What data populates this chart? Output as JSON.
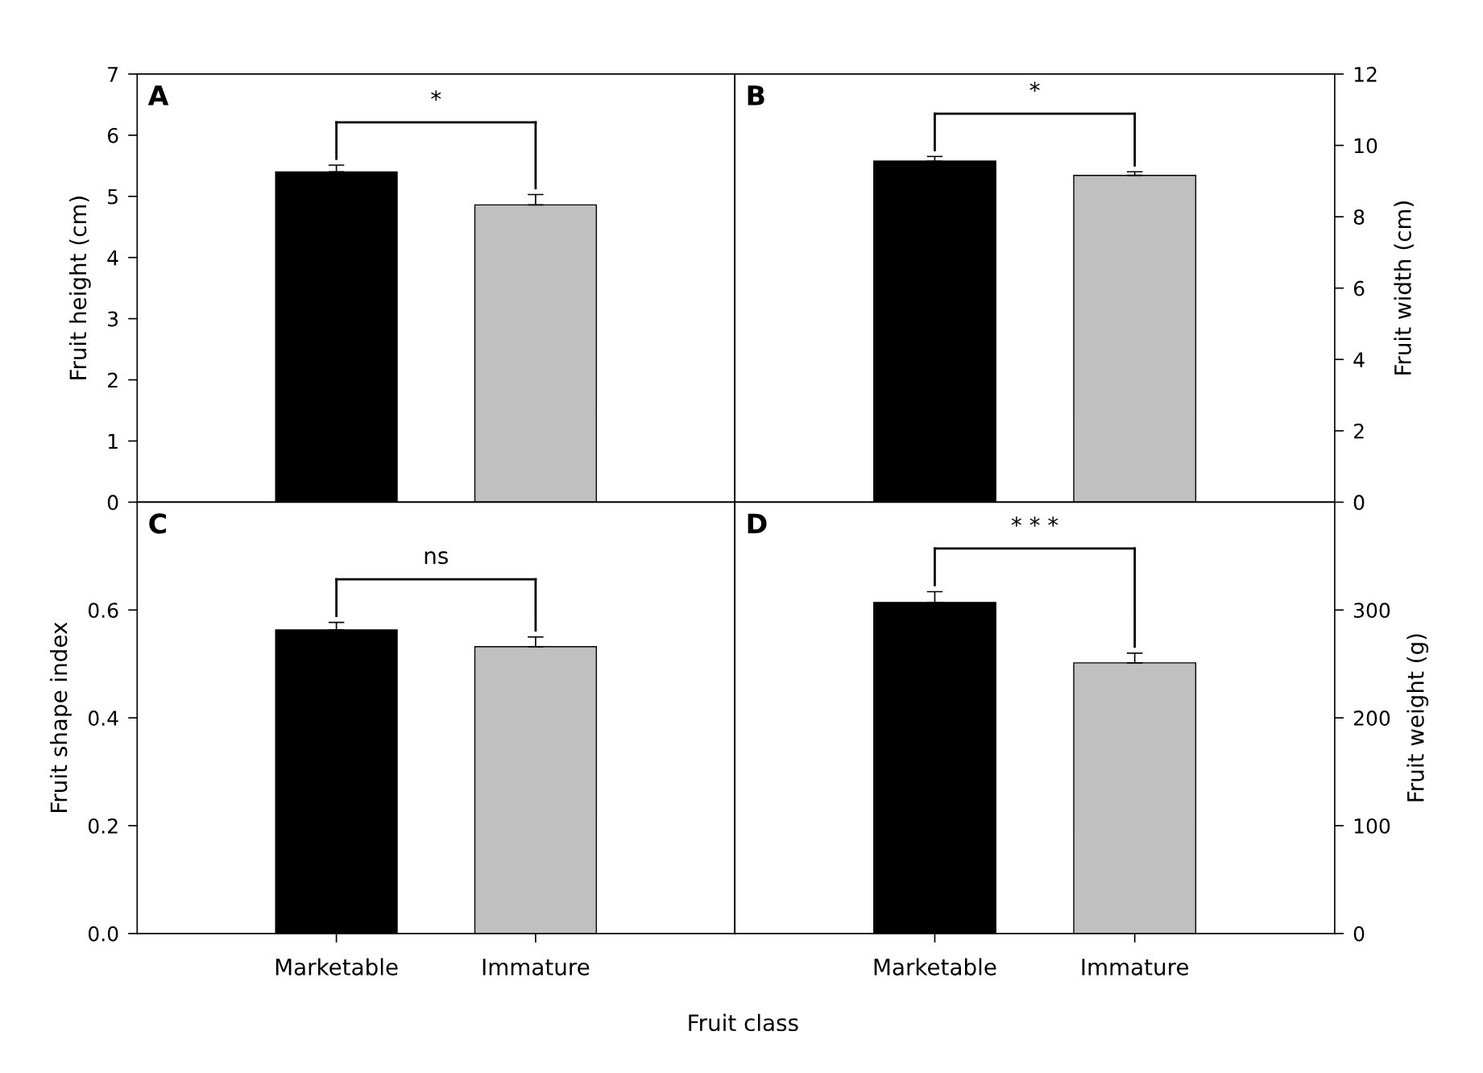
{
  "chart_data": [
    {
      "type": "bar",
      "categories": [
        null,
        null
      ],
      "ylabel": "Fruit height (cm)",
      "ylim": [
        0,
        7
      ],
      "yticks": [
        0,
        1,
        2,
        3,
        4,
        5,
        6,
        7
      ],
      "tick_labels": "y",
      "annotations": [
        "A",
        "*"
      ],
      "series": [
        {
          "values": [
            5.4,
            4.86
          ],
          "colors": [
            "#000000",
            "#c0c0c0"
          ],
          "errors": [
            0.11,
            0.17
          ]
        }
      ]
    },
    {
      "type": "bar",
      "categories": [
        null,
        null
      ],
      "ylabel": "Fruit width (cm)",
      "ylim": [
        0,
        12
      ],
      "yticks": [
        0,
        2,
        4,
        6,
        8,
        10,
        12
      ],
      "tick_labels": "y",
      "annotations": [
        "B",
        "*"
      ],
      "series": [
        {
          "values": [
            9.56,
            9.16
          ],
          "colors": [
            "#000000",
            "#c0c0c0"
          ],
          "errors": [
            0.13,
            0.1
          ]
        }
      ]
    },
    {
      "type": "bar",
      "categories": [
        "Marketable",
        "Immature"
      ],
      "ylabel": "Fruit shape index",
      "xlabel": "Fruit class",
      "ylim": [
        0,
        0.8
      ],
      "yticks": [
        {
          "value": 0,
          "label": "0.0"
        },
        0.2,
        0.4,
        0.6
      ],
      "annotations": [
        "C",
        "ns"
      ],
      "series": [
        {
          "values": [
            0.563,
            0.532
          ],
          "colors": [
            "#000000",
            "#c0c0c0"
          ],
          "errors": [
            0.014,
            0.018
          ]
        }
      ]
    },
    {
      "type": "bar",
      "categories": [
        "Marketable",
        "Immature"
      ],
      "ylabel": "Fruit weight (g)",
      "ylim": [
        0,
        400
      ],
      "yticks": [
        0,
        100,
        200,
        300
      ],
      "annotations": [
        "D",
        "* * *"
      ],
      "series": [
        {
          "values": [
            307,
            251
          ],
          "colors": [
            "#000000",
            "#c0c0c0"
          ],
          "errors": [
            10,
            9
          ]
        }
      ]
    }
  ]
}
